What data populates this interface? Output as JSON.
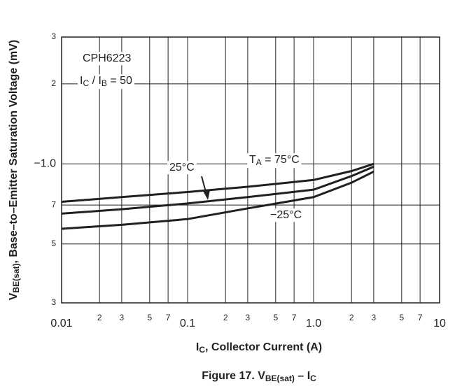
{
  "chart_data": {
    "type": "line",
    "figure": {
      "prefix": "Figure 17. V",
      "sub1": "BE(sat)",
      "mid": " – I",
      "sub2": "C"
    },
    "ylabel": {
      "main": "V",
      "sub": "BE(sat)",
      "rest": ", Base–to–Emitter Saturation Voltage (mV)"
    },
    "xlabel": {
      "main": "I",
      "sub": "C",
      "rest": ", Collector Current (A)"
    },
    "device": "CPH6223",
    "condition": {
      "a": "I",
      "a_sub": "C",
      "mid": " / I",
      "b_sub": "B",
      "rest": " = 50"
    },
    "temp_prefix": {
      "main": "T",
      "sub": "A",
      "rest": " = "
    },
    "x": [
      0.01,
      0.03,
      0.1,
      0.3,
      1,
      2,
      3
    ],
    "series": [
      {
        "name": "75°C",
        "color": "#231f20",
        "values": [
          0.72,
          0.75,
          0.784,
          0.82,
          0.87,
          0.94,
          1.0
        ]
      },
      {
        "name": "25°C",
        "color": "#231f20",
        "values": [
          0.65,
          0.675,
          0.71,
          0.75,
          0.8,
          0.9,
          0.976
        ]
      },
      {
        "name": "−25°C",
        "color": "#231f20",
        "values": [
          0.57,
          0.59,
          0.62,
          0.68,
          0.75,
          0.85,
          0.935
        ]
      }
    ],
    "xscale": "log",
    "yscale": "log",
    "xlim": [
      0.01,
      10
    ],
    "ylim": [
      0.3,
      3
    ],
    "xticks": [
      0.01,
      {
        "value": 0.02,
        "label": "2"
      },
      {
        "value": 0.03,
        "label": "3"
      },
      {
        "value": 0.05,
        "label": "5"
      },
      {
        "value": 0.07,
        "label": "7"
      },
      0.1,
      {
        "value": 0.2,
        "label": "2"
      },
      {
        "value": 0.3,
        "label": "3"
      },
      {
        "value": 0.5,
        "label": "5"
      },
      {
        "value": 0.7,
        "label": "7"
      },
      {
        "value": 1,
        "label": "1.0"
      },
      {
        "value": 2,
        "label": "2"
      },
      {
        "value": 3,
        "label": "3"
      },
      {
        "value": 5,
        "label": "5"
      },
      {
        "value": 7,
        "label": "7"
      },
      10
    ],
    "yticks": [
      {
        "value": 0.3,
        "label": "3"
      },
      {
        "value": 0.5,
        "label": "5"
      },
      {
        "value": 0.7,
        "label": "7"
      },
      {
        "value": 1,
        "label": "−1.0"
      },
      2,
      3
    ],
    "grid": true
  }
}
